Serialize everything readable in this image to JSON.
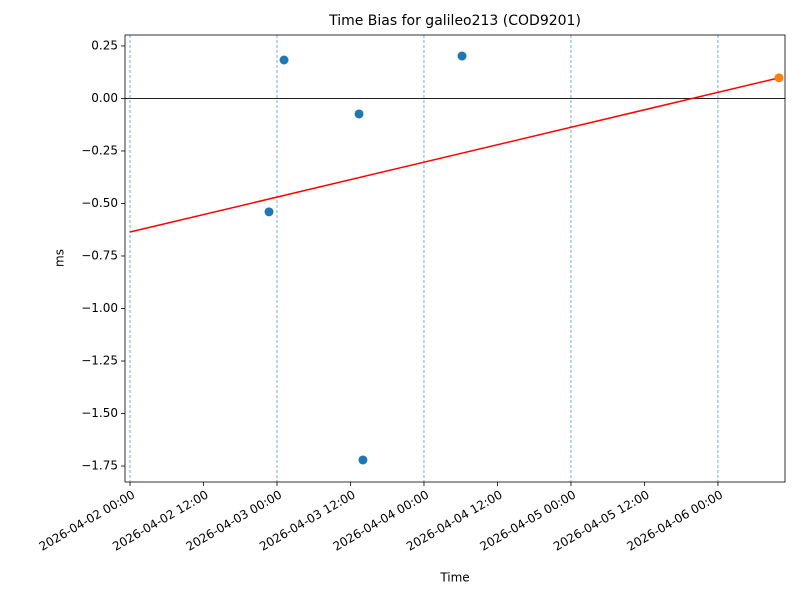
{
  "chart_data": {
    "type": "scatter",
    "title": "Time Bias for galileo213 (COD9201)",
    "x_label": "Time",
    "y_label": "ms",
    "series": [
      {
        "type": "scatter",
        "color": "#1f77b4",
        "x": [
          "2026-04-02 22:42",
          "2026-04-03 01:09",
          "2026-04-03 13:24",
          "2026-04-03 14:02",
          "2026-04-04 06:13"
        ],
        "values": [
          -0.54,
          0.183,
          -0.074,
          -1.721,
          0.202
        ]
      },
      {
        "type": "scatter",
        "color": "#ff7f0e",
        "x": [
          "2026-04-06 09:58"
        ],
        "values": [
          0.098
        ]
      },
      {
        "type": "line",
        "color": "#ff0000",
        "x": [
          "2026-04-02 00:00",
          "2026-04-06 09:58"
        ],
        "values": [
          -0.636,
          0.098
        ]
      }
    ],
    "xlim": [
      "2026-04-01 23:11",
      "2026-04-06 10:57"
    ],
    "xticks": [
      "2026-04-02 00:00",
      "2026-04-02 12:00",
      "2026-04-03 00:00",
      "2026-04-03 12:00",
      "2026-04-04 00:00",
      "2026-04-04 12:00",
      "2026-04-05 00:00",
      "2026-04-05 12:00",
      "2026-04-06 00:00"
    ],
    "ylim": [
      -1.826,
      0.302
    ],
    "yticks": [
      {
        "value": -1.75,
        "label": "−1.75"
      },
      {
        "value": -1.5,
        "label": "−1.50"
      },
      {
        "value": -1.25,
        "label": "−1.25"
      },
      {
        "value": -1.0,
        "label": "−1.00"
      },
      {
        "value": -0.75,
        "label": "−0.75"
      },
      {
        "value": -0.5,
        "label": "−0.50"
      },
      {
        "value": -0.25,
        "label": "−0.25"
      },
      {
        "value": 0,
        "label": "0.00"
      },
      0.25
    ],
    "vlines": [
      "2026-04-02 00:00",
      "2026-04-03 00:00",
      "2026-04-04 00:00",
      "2026-04-05 00:00",
      "2026-04-06 00:00"
    ],
    "vline_color": "#1f77b4",
    "hlines": [
      0
    ],
    "hline_color": "#000000"
  }
}
